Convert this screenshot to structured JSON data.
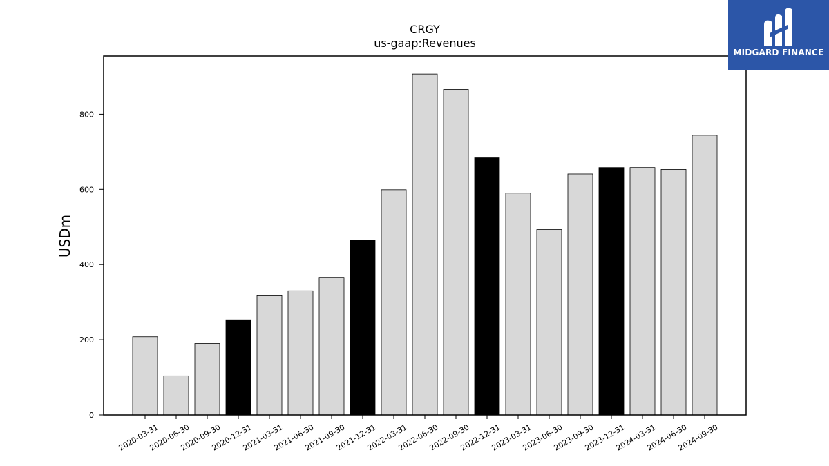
{
  "chart_data": {
    "type": "bar",
    "title": "CRGY",
    "subtitle": "us-gaap:Revenues",
    "ylabel": "USDm",
    "xlabel": "",
    "ylim": [
      0,
      955
    ],
    "yticks": [
      0,
      200,
      400,
      600,
      800
    ],
    "grid": false,
    "legend": "none",
    "categories": [
      "2020-03-31",
      "2020-06-30",
      "2020-09-30",
      "2020-12-31",
      "2021-03-31",
      "2021-06-30",
      "2021-09-30",
      "2021-12-31",
      "2022-03-31",
      "2022-06-30",
      "2022-09-30",
      "2022-12-31",
      "2023-03-31",
      "2023-06-30",
      "2023-09-30",
      "2023-12-31",
      "2024-03-31",
      "2024-06-30",
      "2024-09-30"
    ],
    "values": [
      208,
      104,
      190,
      253,
      317,
      330,
      366,
      464,
      599,
      907,
      866,
      684,
      590,
      493,
      641,
      658,
      658,
      653,
      744
    ],
    "highlight": [
      false,
      false,
      false,
      true,
      false,
      false,
      false,
      true,
      false,
      false,
      false,
      true,
      false,
      false,
      false,
      true,
      false,
      false,
      false
    ],
    "colors": {
      "bar": "#d8d8d8",
      "highlight": "#000000",
      "edge": "#000000"
    }
  },
  "logo": {
    "text": "MIDGARD FINANCE",
    "color": "#2c56a8"
  }
}
